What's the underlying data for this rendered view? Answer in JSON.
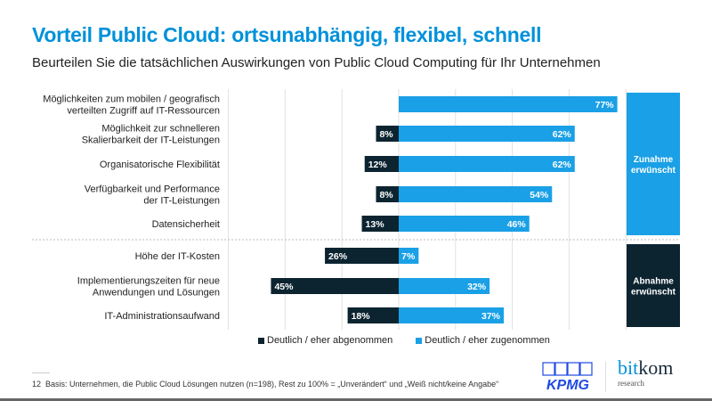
{
  "title": "Vorteil Public Cloud: ortsunabhängig, flexibel, schnell",
  "subtitle": "Beurteilen Sie die tatsächlichen Auswirkungen von Public Cloud Computing für Ihr Unternehmen",
  "chart_data": {
    "type": "bar",
    "orientation": "horizontal-diverging",
    "categories": [
      [
        "Möglichkeiten zum mobilen / geografisch",
        "verteilten Zugriff auf IT-Ressourcen"
      ],
      [
        "Möglichkeit zur schnelleren",
        "Skalierbarkeit der IT-Leistungen"
      ],
      [
        "Organisatorische Flexibilität"
      ],
      [
        "Verfügbarkeit und Performance",
        "der IT-Leistungen"
      ],
      [
        "Datensicherheit"
      ],
      [
        "Höhe der IT-Kosten"
      ],
      [
        "Implementierungszeiten für neue",
        "Anwendungen und Lösungen"
      ],
      [
        "IT-Administrationsaufwand"
      ]
    ],
    "series": [
      {
        "name": "Deutlich / eher abgenommen",
        "color": "#0c2430",
        "values": [
          null,
          8,
          12,
          8,
          13,
          26,
          45,
          18
        ]
      },
      {
        "name": "Deutlich / eher zugenommen",
        "color": "#1aa0e6",
        "values": [
          77,
          62,
          62,
          54,
          46,
          7,
          32,
          37
        ]
      }
    ],
    "unit": "%",
    "xlim": [
      -60,
      80
    ],
    "grid": true,
    "legend_position": "bottom",
    "groups": [
      {
        "label": [
          "Zunahme",
          "erwünscht"
        ],
        "color": "#1aa0e6",
        "rows": [
          0,
          4
        ]
      },
      {
        "label": [
          "Abnahme",
          "erwünscht"
        ],
        "color": "#0c2430",
        "rows": [
          5,
          7
        ]
      }
    ]
  },
  "footer": {
    "page_number": "12",
    "note": "Basis: Unternehmen, die Public Cloud Lösungen nutzen (n=198), Rest zu 100% = „Unverändert“ und „Weiß nicht/keine Angabe“"
  },
  "logos": {
    "kpmg": "KPMG",
    "bitkom_a": "bit",
    "bitkom_b": "kom",
    "bitkom_sub": "research"
  }
}
